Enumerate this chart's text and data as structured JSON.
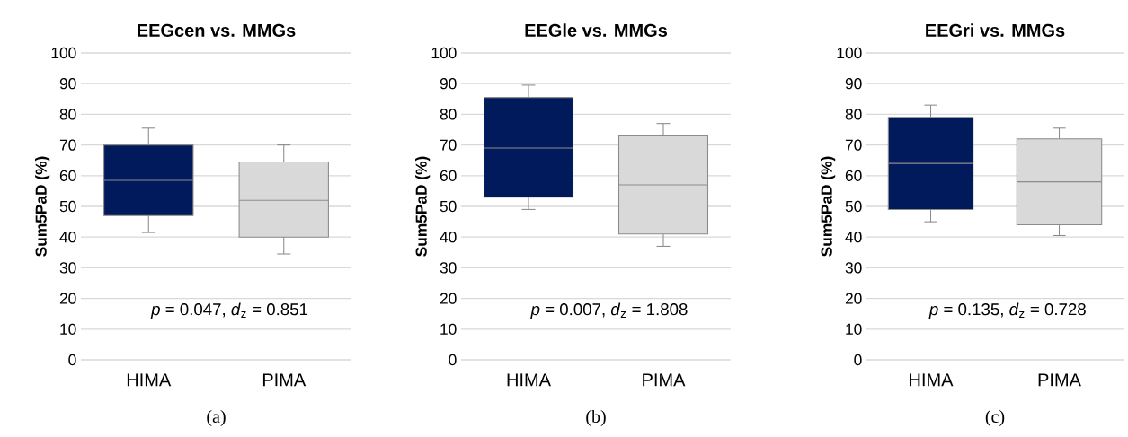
{
  "chart_data": [
    {
      "type": "box",
      "title": "EEGcen vs. MMGs",
      "ylabel": "Sum5PaD (%)",
      "categories": [
        "HIMA",
        "PIMA"
      ],
      "boxes": [
        {
          "low": 41.5,
          "q1": 47,
          "median": 58.5,
          "q3": 70,
          "high": 75.5
        },
        {
          "low": 34.5,
          "q1": 40,
          "median": 52,
          "q3": 64.5,
          "high": 70
        }
      ],
      "colors": [
        "#001a5c",
        "#d9d9d9"
      ],
      "ylim": [
        0,
        100
      ],
      "yticks": [
        0,
        10,
        20,
        30,
        40,
        50,
        60,
        70,
        80,
        90,
        100
      ],
      "grid": "y",
      "annotations": [
        "*p* = 0.047, *d*$_{z}$ = 0.851",
        "(a)"
      ]
    },
    {
      "type": "box",
      "title": "EEGle vs. MMGs",
      "ylabel": "Sum5PaD (%)",
      "categories": [
        "HIMA",
        "PIMA"
      ],
      "boxes": [
        {
          "low": 49,
          "q1": 53,
          "median": 69,
          "q3": 85.5,
          "high": 89.5
        },
        {
          "low": 37,
          "q1": 41,
          "median": 57,
          "q3": 73,
          "high": 77
        }
      ],
      "colors": [
        "#001a5c",
        "#d9d9d9"
      ],
      "ylim": [
        0,
        100
      ],
      "yticks": [
        0,
        10,
        20,
        30,
        40,
        50,
        60,
        70,
        80,
        90,
        100
      ],
      "grid": "y",
      "annotations": [
        "*p* = 0.007, *d*$_{z}$ = 1.808",
        "(b)"
      ]
    },
    {
      "type": "box",
      "title": "EEGri vs. MMGs",
      "ylabel": "Sum5PaD (%)",
      "categories": [
        "HIMA",
        "PIMA"
      ],
      "boxes": [
        {
          "low": 45,
          "q1": 49,
          "median": 64,
          "q3": 79,
          "high": 83
        },
        {
          "low": 40.5,
          "q1": 44,
          "median": 58,
          "q3": 72,
          "high": 75.5
        }
      ],
      "colors": [
        "#001a5c",
        "#d9d9d9"
      ],
      "ylim": [
        0,
        100
      ],
      "yticks": [
        0,
        10,
        20,
        30,
        40,
        50,
        60,
        70,
        80,
        90,
        100
      ],
      "grid": "y",
      "annotations": [
        "*p* = 0.135, *d*$_{z}$ = 0.728",
        "(c)"
      ]
    }
  ]
}
